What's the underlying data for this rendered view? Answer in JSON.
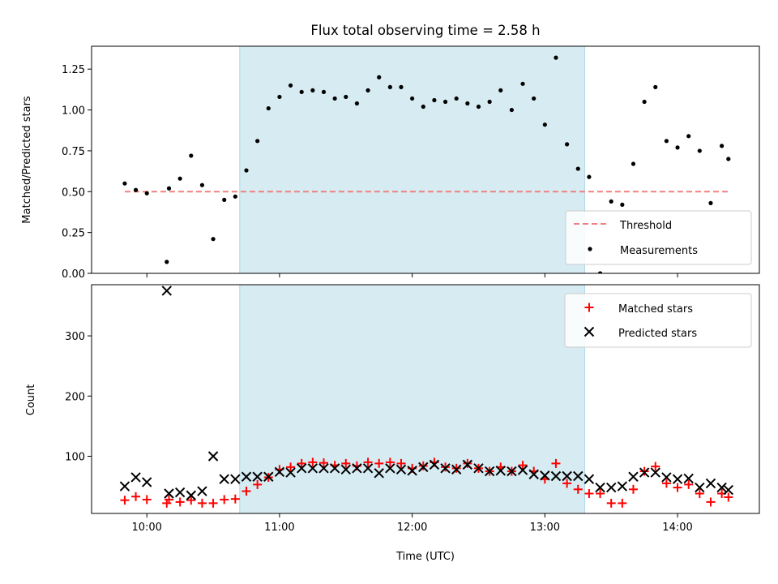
{
  "title": "Flux total observing time = 2.58 h",
  "colors": {
    "threshold": "#f08080",
    "measurement": "#000000",
    "matched": "#ff0000",
    "predicted": "#000000",
    "span": "#add8e6"
  },
  "chart_data": [
    {
      "type": "scatter",
      "ylabel": "Matched/Predicted stars",
      "xlim": [
        "09:35",
        "14:37"
      ],
      "ylim": [
        0,
        1.39
      ],
      "yticks": [
        0.0,
        0.25,
        0.5,
        0.75,
        1.0,
        1.25
      ],
      "ytick_labels": [
        "0.00",
        "0.25",
        "0.50",
        "0.75",
        "1.00",
        "1.25"
      ],
      "legend_position": "lower-right",
      "shaded_span": [
        "10:42",
        "13:18"
      ],
      "threshold": {
        "name": "Threshold",
        "y": 0.5,
        "x_range": [
          "09:50",
          "14:23"
        ]
      },
      "series": [
        {
          "name": "Measurements",
          "x": [
            "09:50",
            "09:55",
            "10:00",
            "10:09",
            "10:10",
            "10:15",
            "10:20",
            "10:25",
            "10:30",
            "10:35",
            "10:40",
            "10:45",
            "10:50",
            "10:55",
            "11:00",
            "11:05",
            "11:10",
            "11:15",
            "11:20",
            "11:25",
            "11:30",
            "11:35",
            "11:40",
            "11:45",
            "11:50",
            "11:55",
            "12:00",
            "12:05",
            "12:10",
            "12:15",
            "12:20",
            "12:25",
            "12:30",
            "12:35",
            "12:40",
            "12:45",
            "12:50",
            "12:55",
            "13:00",
            "13:05",
            "13:10",
            "13:15",
            "13:20",
            "13:25",
            "13:30",
            "13:35",
            "13:40",
            "13:45",
            "13:50",
            "13:55",
            "14:00",
            "14:05",
            "14:10",
            "14:15",
            "14:20",
            "14:23"
          ],
          "y": [
            0.55,
            0.51,
            0.49,
            0.07,
            0.52,
            0.58,
            0.72,
            0.54,
            0.21,
            0.45,
            0.47,
            0.63,
            0.81,
            1.01,
            1.08,
            1.15,
            1.11,
            1.12,
            1.11,
            1.07,
            1.08,
            1.04,
            1.12,
            1.2,
            1.14,
            1.14,
            1.07,
            1.02,
            1.06,
            1.05,
            1.07,
            1.04,
            1.02,
            1.05,
            1.12,
            1.0,
            1.16,
            1.07,
            0.91,
            1.32,
            0.79,
            0.64,
            0.59,
            0.0,
            0.44,
            0.42,
            0.67,
            1.05,
            1.14,
            0.81,
            0.77,
            0.84,
            0.75,
            0.43,
            0.78,
            0.7
          ]
        }
      ]
    },
    {
      "type": "scatter",
      "ylabel": "Count",
      "xlabel": "Time (UTC)",
      "xlim": [
        "09:35",
        "14:37"
      ],
      "ylim": [
        5,
        385
      ],
      "yticks": [
        100,
        200,
        300
      ],
      "xtick_labels": [
        "10:00",
        "11:00",
        "12:00",
        "13:00",
        "14:00"
      ],
      "xticks": [
        "10:00",
        "11:00",
        "12:00",
        "13:00",
        "14:00"
      ],
      "legend_position": "upper-right",
      "shaded_span": [
        "10:42",
        "13:18"
      ],
      "series": [
        {
          "name": "Matched stars",
          "marker": "plus",
          "x": [
            "09:50",
            "09:55",
            "10:00",
            "10:09",
            "10:10",
            "10:15",
            "10:20",
            "10:25",
            "10:30",
            "10:35",
            "10:40",
            "10:45",
            "10:50",
            "10:55",
            "11:00",
            "11:05",
            "11:10",
            "11:15",
            "11:20",
            "11:25",
            "11:30",
            "11:35",
            "11:40",
            "11:45",
            "11:50",
            "11:55",
            "12:00",
            "12:05",
            "12:10",
            "12:15",
            "12:20",
            "12:25",
            "12:30",
            "12:35",
            "12:40",
            "12:45",
            "12:50",
            "12:55",
            "13:00",
            "13:05",
            "13:10",
            "13:15",
            "13:20",
            "13:25",
            "13:30",
            "13:35",
            "13:40",
            "13:45",
            "13:50",
            "13:55",
            "14:00",
            "14:05",
            "14:10",
            "14:15",
            "14:20",
            "14:23"
          ],
          "y": [
            27,
            33,
            28,
            22,
            28,
            24,
            27,
            22,
            22,
            28,
            29,
            42,
            53,
            65,
            78,
            82,
            88,
            90,
            89,
            85,
            88,
            84,
            90,
            88,
            90,
            88,
            80,
            84,
            90,
            82,
            80,
            88,
            80,
            75,
            82,
            75,
            85,
            75,
            62,
            88,
            55,
            45,
            38,
            38,
            22,
            22,
            45,
            75,
            83,
            55,
            48,
            53,
            38,
            24,
            38,
            32
          ]
        },
        {
          "name": "Predicted stars",
          "marker": "x",
          "x": [
            "09:50",
            "09:55",
            "10:00",
            "10:09",
            "10:10",
            "10:15",
            "10:20",
            "10:25",
            "10:30",
            "10:35",
            "10:40",
            "10:45",
            "10:50",
            "10:55",
            "11:00",
            "11:05",
            "11:10",
            "11:15",
            "11:20",
            "11:25",
            "11:30",
            "11:35",
            "11:40",
            "11:45",
            "11:50",
            "11:55",
            "12:00",
            "12:05",
            "12:10",
            "12:15",
            "12:20",
            "12:25",
            "12:30",
            "12:35",
            "12:40",
            "12:45",
            "12:50",
            "12:55",
            "13:00",
            "13:05",
            "13:10",
            "13:15",
            "13:20",
            "13:25",
            "13:30",
            "13:35",
            "13:40",
            "13:45",
            "13:50",
            "13:55",
            "14:00",
            "14:05",
            "14:10",
            "14:15",
            "14:20",
            "14:23"
          ],
          "y": [
            50,
            65,
            57,
            375,
            38,
            40,
            35,
            42,
            100,
            62,
            62,
            66,
            66,
            66,
            74,
            73,
            80,
            80,
            80,
            80,
            78,
            80,
            80,
            72,
            80,
            78,
            76,
            82,
            86,
            80,
            78,
            86,
            80,
            75,
            76,
            75,
            77,
            70,
            68,
            67,
            67,
            67,
            62,
            48,
            48,
            50,
            66,
            73,
            73,
            65,
            62,
            63,
            48,
            55,
            48,
            44
          ]
        }
      ]
    }
  ]
}
